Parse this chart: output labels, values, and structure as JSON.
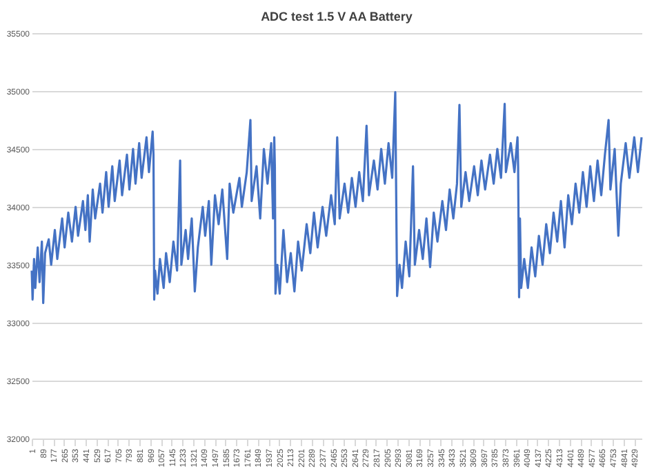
{
  "chart_data": {
    "type": "line",
    "title": "ADC test 1.5 V AA Battery",
    "x": [
      1,
      8,
      20,
      30,
      50,
      65,
      84,
      95,
      110,
      140,
      160,
      190,
      210,
      250,
      270,
      300,
      330,
      360,
      380,
      420,
      440,
      460,
      475,
      500,
      520,
      560,
      580,
      610,
      630,
      660,
      680,
      720,
      740,
      780,
      800,
      830,
      850,
      880,
      900,
      940,
      960,
      990,
      997,
      1003,
      1010,
      1030,
      1050,
      1080,
      1100,
      1130,
      1160,
      1190,
      1215,
      1225,
      1260,
      1280,
      1310,
      1335,
      1360,
      1400,
      1420,
      1450,
      1470,
      1500,
      1530,
      1560,
      1600,
      1620,
      1650,
      1700,
      1720,
      1760,
      1790,
      1800,
      1840,
      1870,
      1900,
      1930,
      1960,
      1975,
      1985,
      1990,
      1995,
      2010,
      2030,
      2060,
      2090,
      2120,
      2150,
      2180,
      2210,
      2250,
      2280,
      2310,
      2340,
      2380,
      2410,
      2450,
      2480,
      2500,
      2520,
      2560,
      2590,
      2620,
      2650,
      2680,
      2710,
      2740,
      2760,
      2800,
      2830,
      2860,
      2890,
      2920,
      2950,
      2975,
      2980,
      2990,
      3010,
      3030,
      3060,
      3090,
      3120,
      3135,
      3170,
      3200,
      3230,
      3260,
      3290,
      3320,
      3360,
      3390,
      3420,
      3450,
      3480,
      3500,
      3515,
      3550,
      3580,
      3620,
      3650,
      3680,
      3710,
      3750,
      3780,
      3810,
      3840,
      3870,
      3880,
      3920,
      3950,
      3975,
      3980,
      3988,
      3995,
      4005,
      4030,
      4060,
      4090,
      4120,
      4150,
      4180,
      4210,
      4240,
      4270,
      4300,
      4330,
      4360,
      4390,
      4420,
      4450,
      4480,
      4510,
      4540,
      4570,
      4600,
      4630,
      4660,
      4690,
      4720,
      4735,
      4770,
      4800,
      4820,
      4860,
      4890,
      4930,
      4960,
      4990
    ],
    "series": [
      {
        "color": "#4472c4",
        "values": [
          33450,
          33200,
          33550,
          33300,
          33650,
          33350,
          33700,
          33170,
          33600,
          33720,
          33500,
          33800,
          33550,
          33900,
          33650,
          33950,
          33700,
          34000,
          33750,
          34050,
          33800,
          34100,
          33700,
          34150,
          33900,
          34200,
          33950,
          34300,
          34000,
          34350,
          34050,
          34400,
          34100,
          34450,
          34150,
          34500,
          34200,
          34550,
          34250,
          34600,
          34300,
          34650,
          34450,
          33200,
          33450,
          33250,
          33550,
          33300,
          33600,
          33350,
          33700,
          33450,
          34400,
          33500,
          33800,
          33550,
          33900,
          33270,
          33650,
          34000,
          33750,
          34050,
          33500,
          34100,
          33850,
          34150,
          33550,
          34200,
          33950,
          34250,
          34000,
          34300,
          34750,
          34050,
          34350,
          33900,
          34500,
          34200,
          34550,
          33900,
          34600,
          34350,
          33250,
          33500,
          33250,
          33800,
          33350,
          33600,
          33270,
          33700,
          33450,
          33850,
          33600,
          33950,
          33650,
          34000,
          33750,
          34100,
          33850,
          34600,
          33900,
          34200,
          33950,
          34250,
          34000,
          34300,
          34050,
          34700,
          34100,
          34400,
          34150,
          34500,
          34200,
          34550,
          34250,
          34990,
          34400,
          33230,
          33500,
          33300,
          33700,
          33400,
          34350,
          33500,
          33800,
          33550,
          33900,
          33480,
          33950,
          33700,
          34050,
          33800,
          34150,
          33900,
          34200,
          34880,
          34000,
          34300,
          34050,
          34350,
          34100,
          34400,
          34150,
          34450,
          34200,
          34500,
          34250,
          34890,
          34300,
          34550,
          34300,
          34600,
          34350,
          33220,
          33900,
          33300,
          33550,
          33300,
          33650,
          33400,
          33750,
          33500,
          33850,
          33600,
          33950,
          33700,
          34050,
          33650,
          34100,
          33850,
          34200,
          33950,
          34300,
          34000,
          34350,
          34050,
          34400,
          34100,
          34450,
          34750,
          34150,
          34500,
          33750,
          34200,
          34550,
          34250,
          34600,
          34300,
          34600
        ]
      }
    ],
    "xlim": [
      1,
      4990
    ],
    "xticks": [
      1,
      89,
      177,
      265,
      353,
      441,
      529,
      617,
      705,
      793,
      881,
      969,
      1057,
      1145,
      1233,
      1321,
      1409,
      1497,
      1585,
      1673,
      1761,
      1849,
      1937,
      2025,
      2113,
      2201,
      2289,
      2377,
      2465,
      2553,
      2641,
      2729,
      2817,
      2905,
      2993,
      3081,
      3169,
      3257,
      3345,
      3433,
      3521,
      3609,
      3697,
      3785,
      3873,
      3961,
      4049,
      4137,
      4225,
      4313,
      4401,
      4489,
      4577,
      4665,
      4753,
      4841,
      4929
    ],
    "ylim": [
      32000,
      35500
    ],
    "yticks": [
      32000,
      32500,
      33000,
      33500,
      34000,
      34500,
      35000,
      35500
    ],
    "grid": "y",
    "line_style": "solid",
    "marker": "none"
  }
}
